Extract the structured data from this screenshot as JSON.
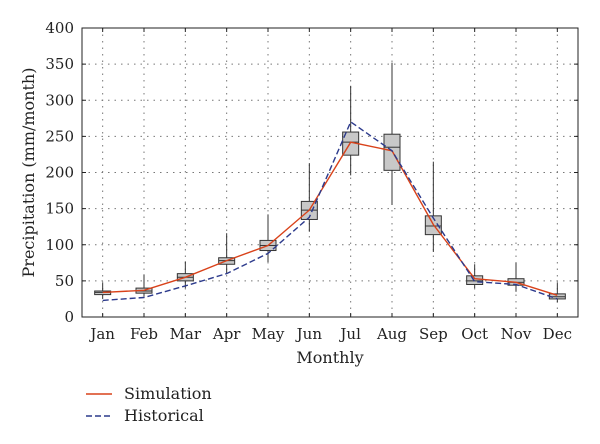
{
  "chart_data": {
    "type": "box-line",
    "title": "",
    "xlabel": "Monthly",
    "ylabel": "Precipitation (mm/month)",
    "ylim": [
      0,
      400
    ],
    "yticks": [
      0,
      50,
      100,
      150,
      200,
      250,
      300,
      350,
      400
    ],
    "categories": [
      "Jan",
      "Feb",
      "Mar",
      "Apr",
      "May",
      "Jun",
      "Jul",
      "Aug",
      "Sep",
      "Oct",
      "Nov",
      "Dec"
    ],
    "grid": true,
    "legend_position": "bottom-left",
    "boxes": [
      {
        "min": 25,
        "q1": 31,
        "median": 34,
        "q3": 36,
        "max": 47
      },
      {
        "min": 28,
        "q1": 33,
        "median": 36,
        "q3": 40,
        "max": 59
      },
      {
        "min": 40,
        "q1": 50,
        "median": 55,
        "q3": 60,
        "max": 77
      },
      {
        "min": 60,
        "q1": 73,
        "median": 78,
        "q3": 82,
        "max": 116
      },
      {
        "min": 76,
        "q1": 92,
        "median": 99,
        "q3": 106,
        "max": 142
      },
      {
        "min": 118,
        "q1": 135,
        "median": 148,
        "q3": 160,
        "max": 213
      },
      {
        "min": 196,
        "q1": 224,
        "median": 242,
        "q3": 256,
        "max": 320
      },
      {
        "min": 155,
        "q1": 203,
        "median": 235,
        "q3": 253,
        "max": 352
      },
      {
        "min": 90,
        "q1": 114,
        "median": 126,
        "q3": 140,
        "max": 215
      },
      {
        "min": 40,
        "q1": 45,
        "median": 50,
        "q3": 57,
        "max": 73
      },
      {
        "min": 35,
        "q1": 44,
        "median": 48,
        "q3": 53,
        "max": 75
      },
      {
        "min": 20,
        "q1": 25,
        "median": 28,
        "q3": 32,
        "max": 47
      }
    ],
    "series": [
      {
        "name": "Simulation",
        "color": "#d9421a",
        "style": "solid",
        "values": [
          34,
          37,
          55,
          78,
          99,
          148,
          242,
          230,
          128,
          53,
          48,
          30
        ]
      },
      {
        "name": "Historical",
        "color": "#2c3a8c",
        "style": "dashed",
        "values": [
          23,
          27,
          43,
          60,
          88,
          138,
          270,
          230,
          137,
          49,
          45,
          25
        ]
      }
    ],
    "box_fill": "#c8c8c8",
    "box_stroke": "#333333"
  }
}
